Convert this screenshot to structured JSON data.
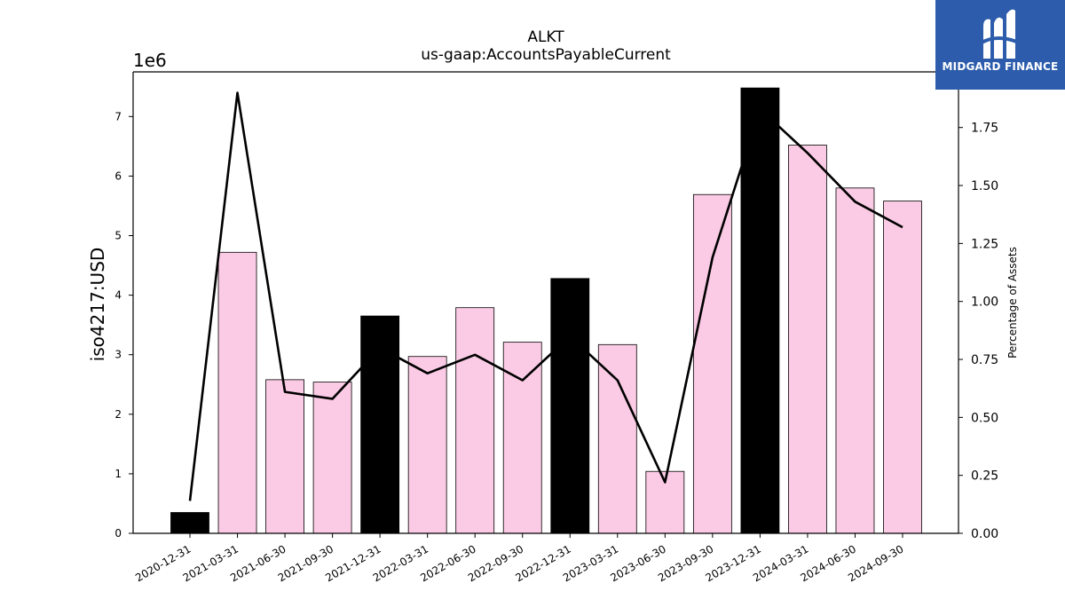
{
  "chart_data": {
    "type": "bar",
    "title": "ALKT",
    "subtitle": "us-gaap:AccountsPayableCurrent",
    "ylabel": "iso4217:USD",
    "y_scale_label": "1e6",
    "y2label": "Percentage of Assets",
    "ylim": [
      0,
      7.75
    ],
    "y2lim": [
      0,
      1.99
    ],
    "yticks": [
      0,
      1,
      2,
      3,
      4,
      5,
      6,
      7
    ],
    "y2ticks": [
      "0.00",
      "0.25",
      "0.50",
      "0.75",
      "1.00",
      "1.25",
      "1.50",
      "1.75"
    ],
    "categories": [
      "2020-12-31",
      "2021-03-31",
      "2021-06-30",
      "2021-09-30",
      "2021-12-31",
      "2022-03-31",
      "2022-06-30",
      "2022-09-30",
      "2022-12-31",
      "2023-03-31",
      "2023-06-30",
      "2023-09-30",
      "2023-12-31",
      "2024-03-31",
      "2024-06-30",
      "2024-09-30"
    ],
    "series": [
      {
        "values": [
          0.35,
          4.72,
          2.58,
          2.54,
          3.65,
          2.97,
          3.79,
          3.21,
          4.28,
          3.17,
          1.04,
          5.69,
          7.48,
          6.52,
          5.8,
          5.58
        ],
        "fy_highlight": [
          true,
          false,
          false,
          false,
          true,
          false,
          false,
          false,
          true,
          false,
          false,
          false,
          true,
          false,
          false,
          false
        ]
      },
      {
        "axis": "secondary",
        "values": [
          0.14,
          1.9,
          0.61,
          0.58,
          0.8,
          0.69,
          0.77,
          0.66,
          0.85,
          0.66,
          0.22,
          1.19,
          1.83,
          1.64,
          1.43,
          1.32
        ]
      }
    ],
    "colors": {
      "bar": "#fbcbe5",
      "bar_highlight": "#000000",
      "line": "#000000"
    },
    "grid": false
  },
  "logo": {
    "text": "MIDGARD FINANCE"
  }
}
